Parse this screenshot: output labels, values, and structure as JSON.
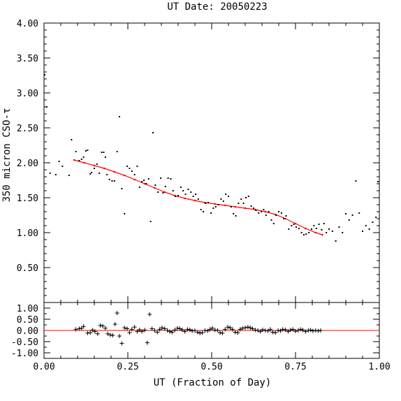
{
  "chart_data": [
    {
      "type": "scatter",
      "title": "UT Date: 20050223",
      "ylabel": "350 micron CSO-τ",
      "xlabel": "",
      "xlim": [
        0.0,
        1.0
      ],
      "ylim": [
        0.0,
        4.0
      ],
      "yticks": [
        "0.50",
        "1.00",
        "1.50",
        "2.00",
        "2.50",
        "3.00",
        "3.50",
        "4.00"
      ],
      "xticks": [
        "0.00",
        "0.25",
        "0.50",
        "0.75",
        "1.00"
      ],
      "grid": false,
      "series": [
        {
          "role": "measurements",
          "marker": "dot",
          "color": "#000000",
          "x": [
            0.002,
            0.008,
            0.018,
            0.035,
            0.045,
            0.055,
            0.075,
            0.082,
            0.095,
            0.105,
            0.112,
            0.118,
            0.125,
            0.13,
            0.138,
            0.142,
            0.15,
            0.158,
            0.165,
            0.172,
            0.178,
            0.183,
            0.188,
            0.195,
            0.203,
            0.21,
            0.218,
            0.225,
            0.232,
            0.24,
            0.248,
            0.255,
            0.262,
            0.27,
            0.278,
            0.285,
            0.292,
            0.298,
            0.305,
            0.312,
            0.318,
            0.325,
            0.332,
            0.34,
            0.348,
            0.355,
            0.362,
            0.37,
            0.378,
            0.385,
            0.392,
            0.4,
            0.408,
            0.415,
            0.422,
            0.43,
            0.438,
            0.445,
            0.452,
            0.46,
            0.468,
            0.475,
            0.482,
            0.49,
            0.498,
            0.505,
            0.512,
            0.52,
            0.528,
            0.535,
            0.542,
            0.55,
            0.558,
            0.565,
            0.572,
            0.58,
            0.588,
            0.595,
            0.602,
            0.61,
            0.618,
            0.625,
            0.632,
            0.64,
            0.648,
            0.655,
            0.662,
            0.67,
            0.678,
            0.685,
            0.692,
            0.7,
            0.708,
            0.715,
            0.722,
            0.73,
            0.738,
            0.745,
            0.752,
            0.76,
            0.768,
            0.775,
            0.782,
            0.79,
            0.798,
            0.805,
            0.812,
            0.82,
            0.828,
            0.835,
            0.842,
            0.85,
            0.86,
            0.87,
            0.88,
            0.89,
            0.9,
            0.91,
            0.92,
            0.93,
            0.94,
            0.95,
            0.96,
            0.97,
            0.98,
            0.99,
            0.996
          ],
          "y": [
            3.26,
            2.8,
            1.85,
            1.83,
            2.02,
            1.95,
            1.82,
            2.33,
            2.16,
            2.03,
            2.05,
            2.08,
            2.17,
            2.18,
            1.84,
            1.86,
            1.92,
            1.98,
            1.85,
            2.15,
            2.15,
            2.08,
            1.83,
            1.76,
            1.74,
            1.74,
            2.16,
            2.66,
            1.63,
            1.27,
            1.95,
            1.92,
            1.88,
            1.83,
            1.95,
            1.65,
            1.73,
            1.75,
            1.7,
            1.77,
            1.16,
            2.43,
            1.68,
            1.58,
            1.78,
            1.57,
            1.66,
            1.78,
            1.77,
            1.6,
            1.52,
            1.53,
            1.65,
            1.6,
            1.55,
            1.62,
            1.58,
            1.52,
            1.55,
            1.48,
            1.33,
            1.3,
            1.42,
            1.43,
            1.28,
            1.35,
            1.37,
            1.4,
            1.48,
            1.45,
            1.55,
            1.52,
            1.37,
            1.27,
            1.24,
            1.42,
            1.48,
            1.42,
            1.5,
            1.52,
            1.38,
            1.35,
            1.32,
            1.28,
            1.3,
            1.33,
            1.25,
            1.3,
            1.18,
            1.13,
            1.25,
            1.3,
            1.28,
            1.2,
            1.24,
            1.05,
            1.1,
            1.12,
            1.08,
            1.06,
            1.0,
            0.97,
            0.98,
            1.0,
            1.05,
            1.1,
            1.06,
            1.12,
            1.04,
            1.13,
            1.0,
            1.05,
            1.02,
            0.88,
            1.08,
            1.0,
            1.27,
            1.18,
            1.25,
            1.74,
            1.28,
            1.02,
            1.1,
            1.05,
            1.15,
            1.22,
            1.73
          ],
          "_note_": "last point at right edge"
        },
        {
          "role": "fit",
          "marker": "line",
          "color": "#ff0000",
          "x": [
            0.09,
            0.12,
            0.15,
            0.18,
            0.21,
            0.24,
            0.27,
            0.3,
            0.33,
            0.36,
            0.39,
            0.42,
            0.45,
            0.48,
            0.51,
            0.54,
            0.57,
            0.6,
            0.63,
            0.66,
            0.69,
            0.72,
            0.75,
            0.78,
            0.81,
            0.83
          ],
          "y": [
            2.04,
            2.0,
            1.96,
            1.92,
            1.87,
            1.82,
            1.76,
            1.7,
            1.64,
            1.58,
            1.53,
            1.49,
            1.46,
            1.43,
            1.41,
            1.39,
            1.37,
            1.35,
            1.33,
            1.3,
            1.26,
            1.2,
            1.13,
            1.06,
            1.0,
            0.97
          ]
        }
      ]
    },
    {
      "type": "scatter",
      "title": "",
      "xlabel": "UT (Fraction of Day)",
      "ylabel": "",
      "xlim": [
        0.0,
        1.0
      ],
      "ylim": [
        -1.25,
        1.25
      ],
      "yticks": [
        "-1.00",
        "-0.50",
        "0.00",
        "0.50",
        "1.00"
      ],
      "xticks": [
        "0.00",
        "0.25",
        "0.50",
        "0.75",
        "1.00"
      ],
      "grid": false,
      "series": [
        {
          "role": "residuals",
          "marker": "plus",
          "color": "#000000",
          "x": [
            0.095,
            0.105,
            0.112,
            0.118,
            0.13,
            0.138,
            0.145,
            0.152,
            0.16,
            0.168,
            0.175,
            0.183,
            0.19,
            0.198,
            0.205,
            0.212,
            0.218,
            0.225,
            0.232,
            0.24,
            0.248,
            0.255,
            0.262,
            0.27,
            0.278,
            0.285,
            0.292,
            0.3,
            0.308,
            0.315,
            0.322,
            0.33,
            0.338,
            0.345,
            0.352,
            0.36,
            0.368,
            0.375,
            0.382,
            0.39,
            0.398,
            0.405,
            0.412,
            0.42,
            0.428,
            0.435,
            0.442,
            0.45,
            0.458,
            0.465,
            0.472,
            0.48,
            0.488,
            0.495,
            0.502,
            0.51,
            0.518,
            0.525,
            0.532,
            0.54,
            0.548,
            0.555,
            0.562,
            0.57,
            0.578,
            0.585,
            0.592,
            0.6,
            0.608,
            0.615,
            0.622,
            0.63,
            0.638,
            0.645,
            0.652,
            0.66,
            0.668,
            0.675,
            0.682,
            0.69,
            0.698,
            0.705,
            0.712,
            0.72,
            0.728,
            0.735,
            0.742,
            0.75,
            0.758,
            0.765,
            0.772,
            0.78,
            0.788,
            0.795,
            0.802,
            0.81,
            0.818,
            0.825
          ],
          "y": [
            0.05,
            0.08,
            0.1,
            0.18,
            -0.12,
            -0.1,
            0.02,
            -0.05,
            -0.15,
            0.22,
            0.2,
            0.1,
            -0.15,
            -0.2,
            -0.22,
            0.28,
            0.78,
            -0.25,
            -0.58,
            0.12,
            0.08,
            -0.1,
            0.05,
            0.15,
            -0.05,
            0.03,
            -0.05,
            0.02,
            -0.55,
            0.72,
            0.08,
            0.0,
            -0.08,
            0.05,
            0.12,
            0.08,
            0.0,
            -0.05,
            -0.08,
            0.02,
            0.1,
            0.08,
            0.03,
            -0.05,
            0.05,
            0.03,
            -0.02,
            0.0,
            -0.08,
            -0.12,
            -0.1,
            0.0,
            -0.02,
            0.05,
            0.1,
            0.02,
            0.0,
            -0.1,
            -0.12,
            0.05,
            0.15,
            0.12,
            0.05,
            -0.08,
            -0.1,
            0.05,
            0.1,
            0.12,
            0.15,
            0.12,
            0.08,
            0.02,
            0.0,
            -0.05,
            0.03,
            0.0,
            -0.02,
            0.05,
            -0.08,
            -0.1,
            0.0,
            -0.02,
            0.05,
            0.03,
            -0.05,
            0.02,
            0.05,
            -0.03,
            0.0,
            0.05,
            0.02,
            -0.05,
            0.0,
            0.02,
            -0.02,
            0.0,
            -0.02,
            0.0
          ]
        },
        {
          "role": "zero-line",
          "marker": "line",
          "color": "#ff0000",
          "x": [
            0.0,
            1.0
          ],
          "y": [
            0.0,
            0.0
          ]
        }
      ]
    }
  ]
}
